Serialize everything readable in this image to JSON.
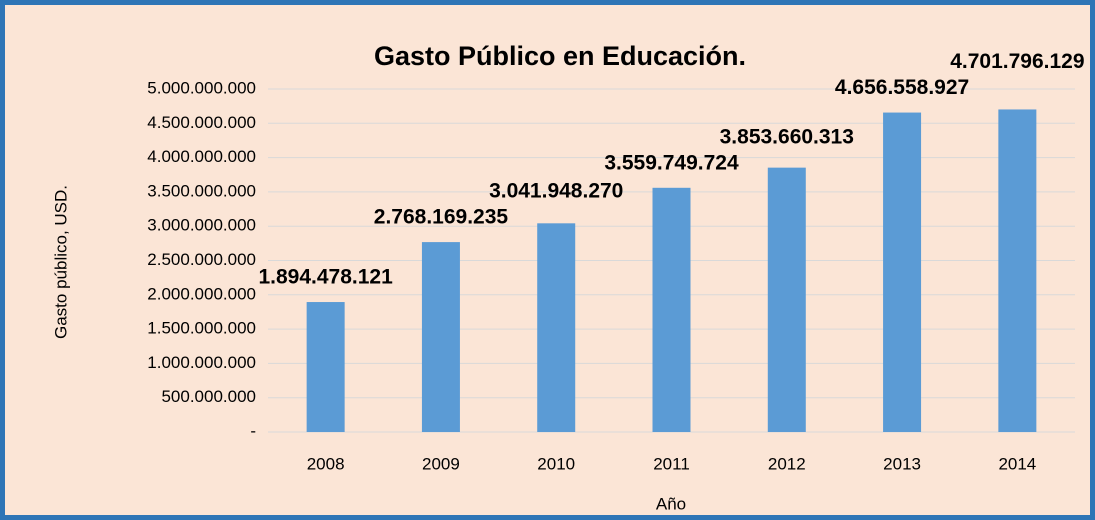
{
  "chart_data": {
    "type": "bar",
    "title": "Gasto Público en Educación.",
    "x_label": "Año",
    "y_label": "Gasto público, USD.",
    "categories": [
      "2008",
      "2009",
      "2010",
      "2011",
      "2012",
      "2013",
      "2014"
    ],
    "values": [
      1894478121,
      2768169235,
      3041948270,
      3559749724,
      3853660313,
      4656558927,
      4701796129
    ],
    "value_labels": [
      "1.894.478.121",
      "2.768.169.235",
      "3.041.948.270",
      "3.559.749.724",
      "3.853.660.313",
      "4.656.558.927",
      "4.701.796.129"
    ],
    "color": "#5b9bd5",
    "ylim": [
      0,
      5000000000
    ],
    "yticks": [
      {
        "value": 0,
        "label": "-"
      },
      {
        "value": 500000000,
        "label": "500.000.000"
      },
      {
        "value": 1000000000,
        "label": "1.000.000.000"
      },
      {
        "value": 1500000000,
        "label": "1.500.000.000"
      },
      {
        "value": 2000000000,
        "label": "2.000.000.000"
      },
      {
        "value": 2500000000,
        "label": "2.500.000.000"
      },
      {
        "value": 3000000000,
        "label": "3.000.000.000"
      },
      {
        "value": 3500000000,
        "label": "3.500.000.000"
      },
      {
        "value": 4000000000,
        "label": "4.000.000.000"
      },
      {
        "value": 4500000000,
        "label": "4.500.000.000"
      },
      {
        "value": 5000000000,
        "label": "5.000.000.000"
      }
    ],
    "grid": true
  }
}
